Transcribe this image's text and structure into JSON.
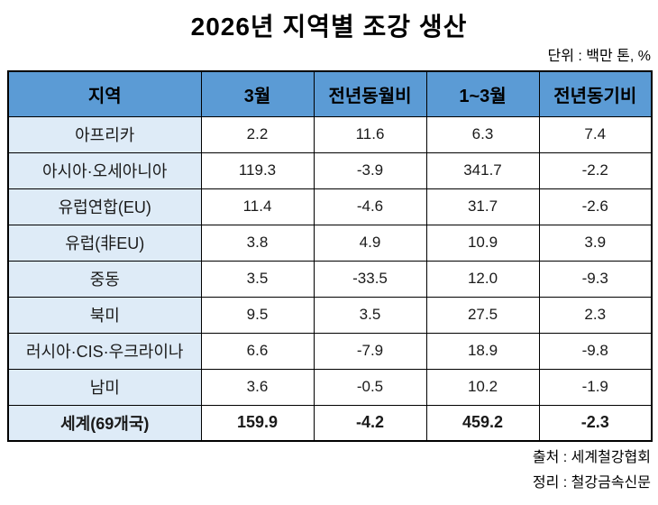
{
  "title": "2026년 지역별 조강 생산",
  "unit_note": "단위 : 백만 톤, %",
  "colors": {
    "header_bg": "#5B9BD5",
    "region_bg": "#DEEBF7",
    "border": "#000000"
  },
  "footer": {
    "source": "출처 : 세계철강협회",
    "editor": "정리 : 철강금속신문"
  },
  "chart_data": {
    "type": "table",
    "title": "2026년 지역별 조강 생산",
    "unit": "백만 톤, %",
    "columns": [
      "지역",
      "3월",
      "전년동월비",
      "1~3월",
      "전년동기비"
    ],
    "rows": [
      {
        "region": "아프리카",
        "values": [
          "2.2",
          "11.6",
          "6.3",
          "7.4"
        ],
        "total": false
      },
      {
        "region": "아시아·오세아니아",
        "values": [
          "119.3",
          "-3.9",
          "341.7",
          "-2.2"
        ],
        "total": false
      },
      {
        "region": "유럽연합(EU)",
        "values": [
          "11.4",
          "-4.6",
          "31.7",
          "-2.6"
        ],
        "total": false
      },
      {
        "region": "유럽(非EU)",
        "values": [
          "3.8",
          "4.9",
          "10.9",
          "3.9"
        ],
        "total": false
      },
      {
        "region": "중동",
        "values": [
          "3.5",
          "-33.5",
          "12.0",
          "-9.3"
        ],
        "total": false
      },
      {
        "region": "북미",
        "values": [
          "9.5",
          "3.5",
          "27.5",
          "2.3"
        ],
        "total": false
      },
      {
        "region": "러시아·CIS·우크라이나",
        "values": [
          "6.6",
          "-7.9",
          "18.9",
          "-9.8"
        ],
        "total": false
      },
      {
        "region": "남미",
        "values": [
          "3.6",
          "-0.5",
          "10.2",
          "-1.9"
        ],
        "total": false
      },
      {
        "region": "세계(69개국)",
        "values": [
          "159.9",
          "-4.2",
          "459.2",
          "-2.3"
        ],
        "total": true
      }
    ]
  }
}
